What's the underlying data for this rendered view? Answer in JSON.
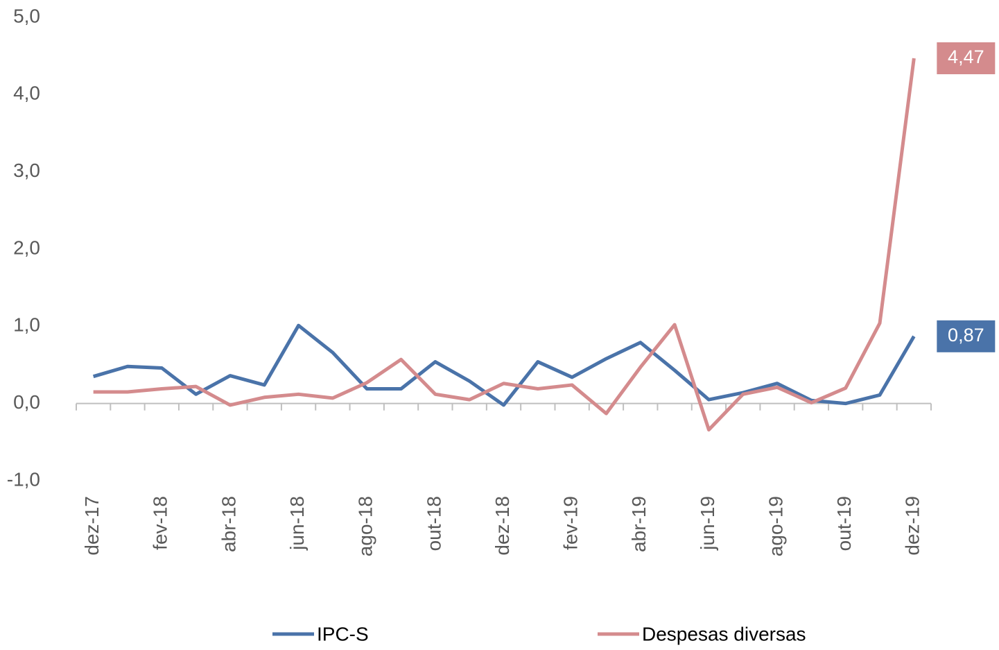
{
  "chart_data": {
    "type": "line",
    "categories": [
      "dez-17",
      null,
      "fev-18",
      null,
      "abr-18",
      null,
      "jun-18",
      null,
      "ago-18",
      null,
      "out-18",
      null,
      "dez-18",
      null,
      "fev-19",
      null,
      "abr-19",
      null,
      "jun-19",
      null,
      "ago-19",
      null,
      "out-19",
      null,
      "dez-19"
    ],
    "series": [
      {
        "name": "IPC-S",
        "color": "#4a73a9",
        "values": [
          0.35,
          0.48,
          0.46,
          0.12,
          0.36,
          0.24,
          1.01,
          0.66,
          0.19,
          0.19,
          0.54,
          0.29,
          -0.02,
          0.54,
          0.34,
          0.58,
          0.79,
          0.43,
          0.05,
          0.14,
          0.26,
          0.04,
          0.0,
          0.11,
          0.87
        ],
        "value_labels": [
          null,
          null,
          null,
          null,
          null,
          null,
          null,
          null,
          null,
          null,
          null,
          null,
          null,
          null,
          null,
          null,
          null,
          null,
          null,
          null,
          null,
          null,
          null,
          null,
          "0,87"
        ]
      },
      {
        "name": "Despesas diversas",
        "color": "#d48b8d",
        "values": [
          0.15,
          0.15,
          0.19,
          0.22,
          -0.02,
          0.08,
          0.12,
          0.07,
          0.27,
          0.57,
          0.12,
          0.05,
          0.26,
          0.19,
          0.24,
          -0.13,
          0.47,
          1.02,
          -0.34,
          0.12,
          0.21,
          0.01,
          0.2,
          1.04,
          4.47
        ],
        "value_labels": [
          null,
          null,
          null,
          null,
          null,
          null,
          null,
          null,
          null,
          null,
          null,
          null,
          null,
          null,
          null,
          null,
          null,
          null,
          null,
          null,
          null,
          null,
          null,
          null,
          "4,47"
        ]
      }
    ],
    "ylim": [
      -1,
      5
    ],
    "yticks": [
      {
        "value": -1,
        "label": "-1,0"
      },
      {
        "value": 0,
        "label": "0,0"
      },
      {
        "value": 1,
        "label": "1,0"
      },
      {
        "value": 2,
        "label": "2,0"
      },
      {
        "value": 3,
        "label": "3,0"
      },
      {
        "value": 4,
        "label": "4,0"
      },
      {
        "value": 5,
        "label": "5,0"
      }
    ],
    "grid": false,
    "legend": "bottom"
  }
}
